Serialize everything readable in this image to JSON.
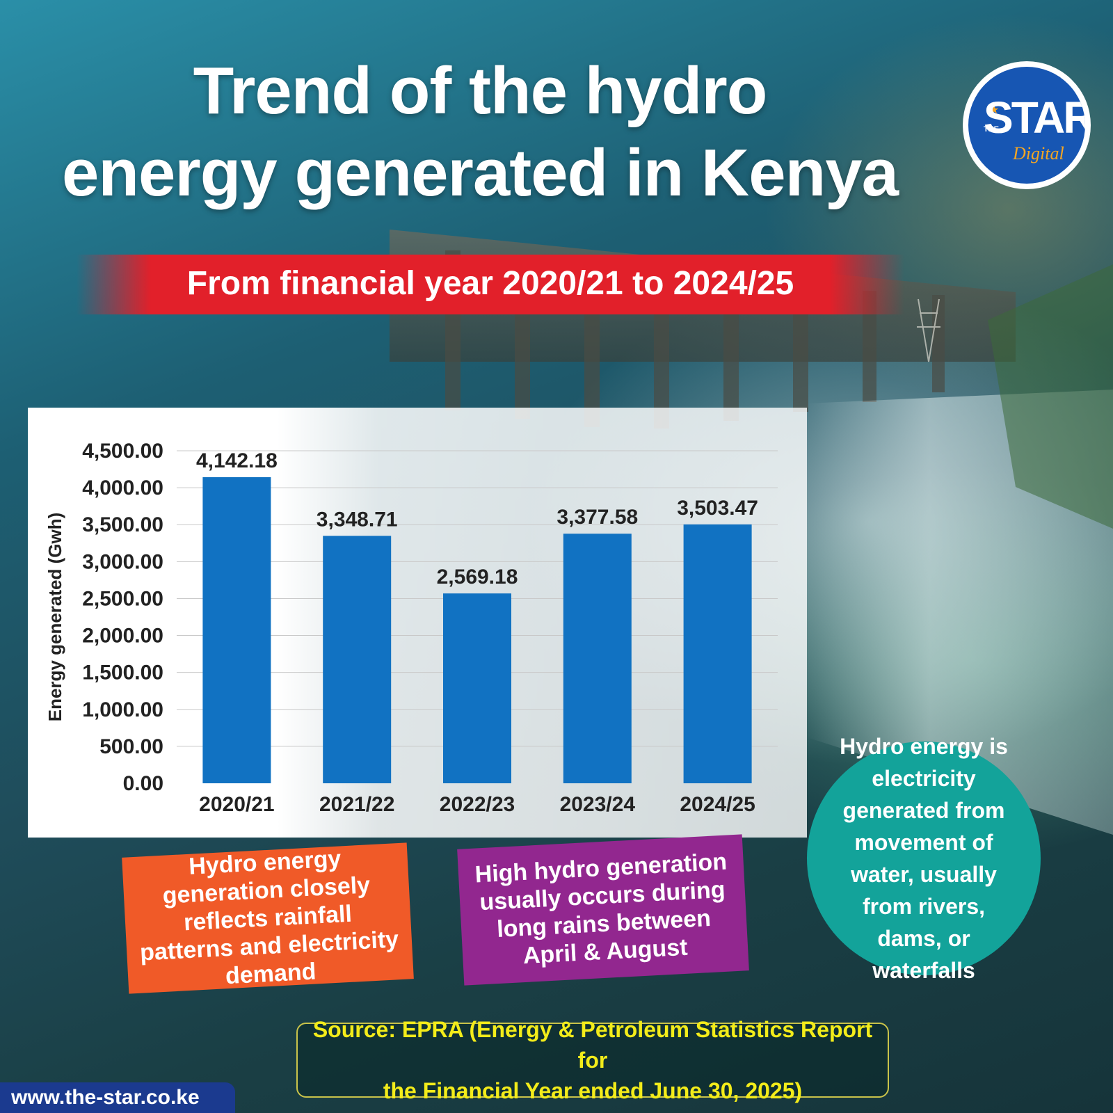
{
  "header": {
    "title_line1": "Trend of the hydro",
    "title_line2": "energy generated in Kenya",
    "subtitle": "From financial year 2020/21 to 2024/25"
  },
  "logo": {
    "the": "THE",
    "star": "STAR",
    "digital": "Digital"
  },
  "chart_data": {
    "type": "bar",
    "categories": [
      "2020/21",
      "2021/22",
      "2022/23",
      "2023/24",
      "2024/25"
    ],
    "values": [
      4142.18,
      3348.71,
      2569.18,
      3377.58,
      3503.47
    ],
    "data_labels": [
      "4,142.18",
      "3,348.71",
      "2,569.18",
      "3,377.58",
      "3,503.47"
    ],
    "ylabel": "Energy generated (Gwh)",
    "ylim": [
      0,
      4500
    ],
    "yticks": [
      0,
      500,
      1000,
      1500,
      2000,
      2500,
      3000,
      3500,
      4000,
      4500
    ],
    "ytick_labels": [
      "0.00",
      "500.00",
      "1,000.00",
      "1,500.00",
      "2,000.00",
      "2,500.00",
      "3,000.00",
      "3,500.00",
      "4,000.00",
      "4,500.00"
    ],
    "grid": true,
    "bar_color": "#1172c2"
  },
  "notes": {
    "orange": "Hydro energy generation closely reflects rainfall patterns and electricity demand",
    "purple": "High hydro generation usually occurs during long rains between April & August",
    "teal": "Hydro energy is electricity generated from movement of water, usually from rivers, dams, or waterfalls"
  },
  "colors": {
    "accent_red": "#e2202a",
    "note_orange": "#f05a28",
    "note_purple": "#92278f",
    "note_teal": "#13a39a",
    "source_text": "#f3ec1a",
    "url_bar": "#1b3a8f"
  },
  "source": {
    "line1": "Source: EPRA (Energy & Petroleum Statistics Report for",
    "line2": "the Financial Year ended June 30, 2025)"
  },
  "footer": {
    "url": "www.the-star.co.ke"
  }
}
